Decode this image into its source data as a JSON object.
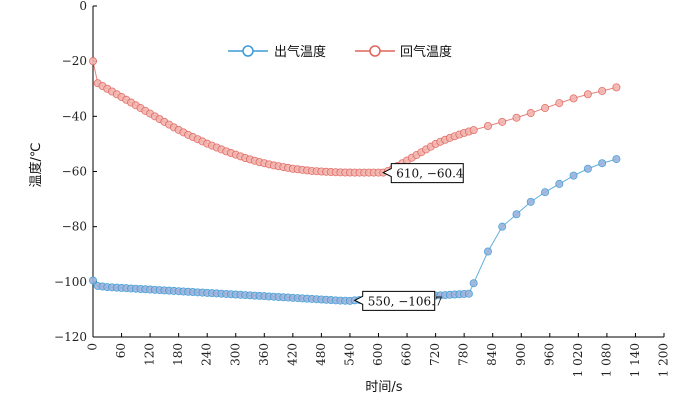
{
  "chart_data": {
    "type": "line",
    "xlabel": "时间/s",
    "ylabel": "温度/℃",
    "xlim": [
      0,
      1200
    ],
    "ylim": [
      -120,
      0
    ],
    "x_ticks": [
      0,
      60,
      120,
      180,
      240,
      300,
      360,
      420,
      480,
      540,
      600,
      660,
      720,
      780,
      840,
      900,
      960,
      1020,
      1080,
      1140,
      1200
    ],
    "x_tick_labels": [
      "0",
      "60",
      "120",
      "180",
      "240",
      "300",
      "360",
      "420",
      "480",
      "540",
      "600",
      "660",
      "720",
      "780",
      "840",
      "900",
      "960",
      "1 020",
      "1 080",
      "1 140",
      "1 200"
    ],
    "y_ticks": [
      0,
      -20,
      -40,
      -60,
      -80,
      -100,
      -120
    ],
    "y_tick_labels": [
      "0",
      "−20",
      "−40",
      "−60",
      "−80",
      "−100",
      "−120"
    ],
    "legend_position": "top-center",
    "series": [
      {
        "name": "出气温度",
        "color": "#3a9bd5",
        "marker_fill": "#9db3dc",
        "x": [
          0,
          10,
          20,
          30,
          40,
          50,
          60,
          70,
          80,
          90,
          100,
          110,
          120,
          130,
          140,
          150,
          160,
          170,
          180,
          190,
          200,
          210,
          220,
          230,
          240,
          250,
          260,
          270,
          280,
          290,
          300,
          310,
          320,
          330,
          340,
          350,
          360,
          370,
          380,
          390,
          400,
          410,
          420,
          430,
          440,
          450,
          460,
          470,
          480,
          490,
          500,
          510,
          520,
          530,
          540,
          550,
          560,
          570,
          580,
          590,
          600,
          610,
          620,
          630,
          640,
          650,
          660,
          670,
          680,
          690,
          700,
          710,
          720,
          730,
          740,
          750,
          760,
          770,
          780,
          790,
          800,
          830,
          860,
          890,
          920,
          950,
          980,
          1010,
          1040,
          1070,
          1100
        ],
        "y": [
          -99.5,
          -101.5,
          -101.7,
          -101.9,
          -102.0,
          -102.1,
          -102.2,
          -102.3,
          -102.4,
          -102.5,
          -102.6,
          -102.7,
          -102.8,
          -102.9,
          -103.0,
          -103.1,
          -103.2,
          -103.3,
          -103.4,
          -103.5,
          -103.6,
          -103.7,
          -103.8,
          -103.9,
          -104.0,
          -104.1,
          -104.2,
          -104.3,
          -104.4,
          -104.5,
          -104.6,
          -104.7,
          -104.8,
          -104.9,
          -105.0,
          -105.1,
          -105.2,
          -105.3,
          -105.4,
          -105.5,
          -105.6,
          -105.7,
          -105.8,
          -105.9,
          -106.0,
          -106.1,
          -106.2,
          -106.3,
          -106.4,
          -106.5,
          -106.6,
          -106.7,
          -106.8,
          -106.85,
          -106.9,
          -106.7,
          -106.6,
          -106.5,
          -106.4,
          -106.3,
          -106.2,
          -106.1,
          -106.0,
          -105.9,
          -105.8,
          -105.7,
          -105.6,
          -105.5,
          -105.4,
          -105.3,
          -105.2,
          -105.1,
          -105.0,
          -104.9,
          -104.8,
          -104.7,
          -104.6,
          -104.5,
          -104.4,
          -104.3,
          -100.5,
          -89.0,
          -80.0,
          -75.5,
          -71.0,
          -67.5,
          -64.5,
          -61.5,
          -59.0,
          -57.0,
          -55.5
        ]
      },
      {
        "name": "回气温度",
        "color": "#e0645c",
        "marker_fill": "#f2b5b0",
        "x": [
          0,
          10,
          20,
          30,
          40,
          50,
          60,
          70,
          80,
          90,
          100,
          110,
          120,
          130,
          140,
          150,
          160,
          170,
          180,
          190,
          200,
          210,
          220,
          230,
          240,
          250,
          260,
          270,
          280,
          290,
          300,
          310,
          320,
          330,
          340,
          350,
          360,
          370,
          380,
          390,
          400,
          410,
          420,
          430,
          440,
          450,
          460,
          470,
          480,
          490,
          500,
          510,
          520,
          530,
          540,
          550,
          560,
          570,
          580,
          590,
          600,
          610,
          620,
          630,
          640,
          650,
          660,
          670,
          680,
          690,
          700,
          710,
          720,
          730,
          740,
          750,
          760,
          770,
          780,
          790,
          800,
          830,
          860,
          890,
          920,
          950,
          980,
          1010,
          1040,
          1070,
          1100
        ],
        "y": [
          -20.0,
          -28.0,
          -29.0,
          -30.0,
          -31.0,
          -32.0,
          -33.0,
          -34.0,
          -35.0,
          -36.0,
          -37.0,
          -38.0,
          -39.0,
          -40.0,
          -41.0,
          -42.0,
          -43.0,
          -44.0,
          -44.9,
          -45.8,
          -46.7,
          -47.5,
          -48.3,
          -49.1,
          -49.9,
          -50.6,
          -51.3,
          -52.0,
          -52.7,
          -53.3,
          -53.9,
          -54.5,
          -55.1,
          -55.6,
          -56.1,
          -56.6,
          -57.0,
          -57.4,
          -57.8,
          -58.1,
          -58.4,
          -58.7,
          -59.0,
          -59.2,
          -59.4,
          -59.6,
          -59.8,
          -59.9,
          -60.0,
          -60.1,
          -60.2,
          -60.25,
          -60.3,
          -60.35,
          -60.38,
          -60.4,
          -60.4,
          -60.4,
          -60.4,
          -60.4,
          -60.4,
          -60.4,
          -59.8,
          -59.0,
          -58.0,
          -57.0,
          -56.0,
          -55.0,
          -54.0,
          -53.0,
          -52.0,
          -51.0,
          -50.0,
          -49.2,
          -48.5,
          -47.8,
          -47.2,
          -46.6,
          -46.0,
          -45.5,
          -45.0,
          -43.5,
          -42.0,
          -40.5,
          -38.8,
          -37.0,
          -35.2,
          -33.5,
          -32.0,
          -30.8,
          -29.5
        ]
      }
    ],
    "annotations": [
      {
        "text": "610, −60.4",
        "x": 610,
        "y": -60.4,
        "series": 1
      },
      {
        "text": "550, −106.7",
        "x": 550,
        "y": -106.7,
        "series": 0
      }
    ]
  }
}
